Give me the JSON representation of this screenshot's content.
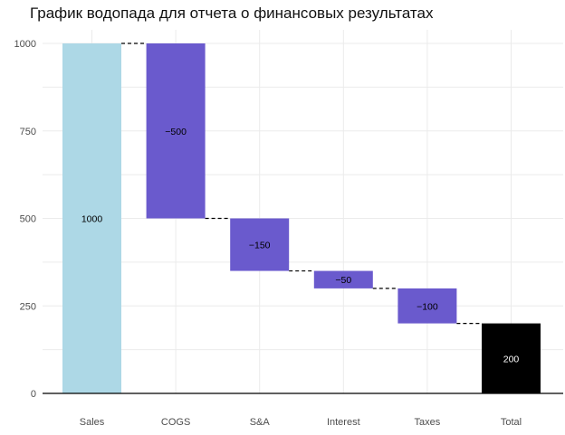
{
  "chart_data": {
    "type": "bar",
    "subtype": "waterfall",
    "title": "График водопада для отчета о финансовых результатах",
    "xlabel": "",
    "ylabel": "",
    "categories": [
      "Sales",
      "COGS",
      "S&A",
      "Interest",
      "Taxes",
      "Total"
    ],
    "values": [
      1000,
      -500,
      -150,
      -50,
      -100,
      200
    ],
    "bar_labels": [
      "1000",
      "−500",
      "−150",
      "−50",
      "−100",
      "200"
    ],
    "bar_kinds": [
      "start",
      "delta",
      "delta",
      "delta",
      "delta",
      "total"
    ],
    "ylim": [
      0,
      1000
    ],
    "yticks": [
      0,
      250,
      500,
      750,
      1000
    ],
    "ytick_labels": [
      "0",
      "250",
      "500",
      "750",
      "1000"
    ],
    "grid": true,
    "legend": "none",
    "connectors": "dashed",
    "colors": {
      "start": "#add8e6",
      "delta": "#6a5acd",
      "total": "#000000",
      "label_dark": "#000000",
      "label_light": "#ffffff",
      "grid": "#ebebeb",
      "axis": "#000000",
      "tick_text": "#4d4d4d"
    }
  }
}
